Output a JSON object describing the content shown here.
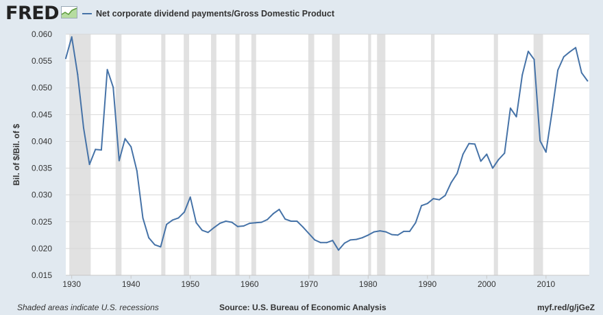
{
  "header": {
    "logo_text": "FRED"
  },
  "chart_data": {
    "type": "line",
    "legend_position": "top-left",
    "ylabel": "Bil. of $/Bil. of $",
    "xlabel": "",
    "ylim": [
      0.015,
      0.06
    ],
    "xlim": [
      1929,
      2017.3
    ],
    "yticks": [
      "0.060",
      "0.055",
      "0.050",
      "0.045",
      "0.040",
      "0.035",
      "0.030",
      "0.025",
      "0.020",
      "0.015"
    ],
    "xticks": [
      "1930",
      "1940",
      "1950",
      "1960",
      "1970",
      "1980",
      "1990",
      "2000",
      "2010"
    ],
    "recessions": [
      [
        1929.6,
        1933.2
      ],
      [
        1937.4,
        1938.4
      ],
      [
        1945.1,
        1945.8
      ],
      [
        1948.9,
        1949.8
      ],
      [
        1953.5,
        1954.4
      ],
      [
        1957.6,
        1958.3
      ],
      [
        1960.3,
        1961.1
      ],
      [
        1969.9,
        1970.9
      ],
      [
        1973.9,
        1975.2
      ],
      [
        1980.0,
        1980.5
      ],
      [
        1981.5,
        1982.9
      ],
      [
        1990.6,
        1991.2
      ],
      [
        2001.2,
        2001.9
      ],
      [
        2007.9,
        2009.5
      ]
    ],
    "series": [
      {
        "name": "Net corporate dividend payments/Gross Domestic Product",
        "color": "#4572a7",
        "x": [
          1929,
          1930,
          1931,
          1932,
          1933,
          1934,
          1935,
          1936,
          1937,
          1938,
          1939,
          1940,
          1941,
          1942,
          1943,
          1944,
          1945,
          1946,
          1947,
          1948,
          1949,
          1950,
          1951,
          1952,
          1953,
          1954,
          1955,
          1956,
          1957,
          1958,
          1959,
          1960,
          1961,
          1962,
          1963,
          1964,
          1965,
          1966,
          1967,
          1968,
          1969,
          1970,
          1971,
          1972,
          1973,
          1974,
          1975,
          1976,
          1977,
          1978,
          1979,
          1980,
          1981,
          1982,
          1983,
          1984,
          1985,
          1986,
          1987,
          1988,
          1989,
          1990,
          1991,
          1992,
          1993,
          1994,
          1995,
          1996,
          1997,
          1998,
          1999,
          2000,
          2001,
          2002,
          2003,
          2004,
          2005,
          2006,
          2007,
          2008,
          2009,
          2010,
          2011,
          2012,
          2013,
          2014,
          2015,
          2016,
          2017
        ],
        "values": [
          0.0555,
          0.0595,
          0.0525,
          0.0425,
          0.0357,
          0.0385,
          0.0384,
          0.0534,
          0.0501,
          0.0364,
          0.0405,
          0.039,
          0.0345,
          0.0257,
          0.022,
          0.0207,
          0.0203,
          0.0245,
          0.0253,
          0.0257,
          0.0268,
          0.0296,
          0.0248,
          0.0234,
          0.023,
          0.0239,
          0.0247,
          0.0251,
          0.0249,
          0.0241,
          0.0242,
          0.0247,
          0.0248,
          0.0249,
          0.0254,
          0.0265,
          0.0273,
          0.0255,
          0.0251,
          0.0251,
          0.024,
          0.0228,
          0.0216,
          0.0211,
          0.0211,
          0.0215,
          0.0197,
          0.021,
          0.0216,
          0.0217,
          0.022,
          0.0225,
          0.0231,
          0.0233,
          0.0231,
          0.0226,
          0.0225,
          0.0232,
          0.0232,
          0.0248,
          0.028,
          0.0284,
          0.0293,
          0.0291,
          0.0299,
          0.0323,
          0.034,
          0.0376,
          0.0396,
          0.0395,
          0.0363,
          0.0376,
          0.035,
          0.0366,
          0.0378,
          0.0462,
          0.0446,
          0.0524,
          0.0568,
          0.0553,
          0.0401,
          0.038,
          0.0454,
          0.0533,
          0.0558,
          0.0567,
          0.0575,
          0.0528,
          0.0513
        ]
      }
    ]
  },
  "footer": {
    "footnote": "Shaded areas indicate U.S. recessions",
    "source": "Source: U.S. Bureau of Economic Analysis",
    "url": "myf.red/g/jGeZ"
  }
}
